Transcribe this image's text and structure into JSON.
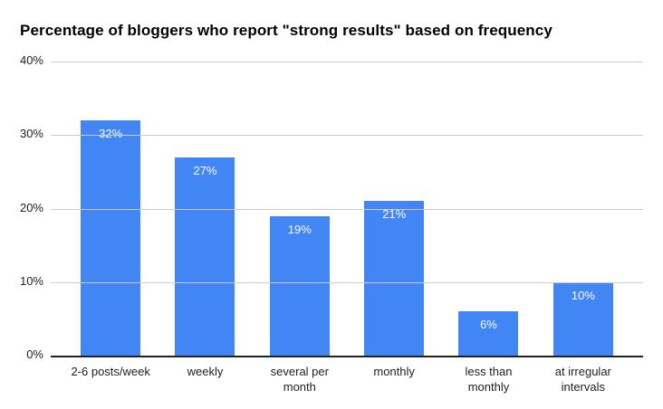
{
  "title": "Percentage of bloggers who report \"strong results\" based on frequency",
  "chart_data": {
    "type": "bar",
    "title": "Percentage of bloggers who report \"strong results\" based on frequency",
    "categories": [
      "2-6 posts/week",
      "weekly",
      "several per month",
      "monthly",
      "less than monthly",
      "at irregular intervals"
    ],
    "values": [
      32,
      27,
      19,
      21,
      6,
      10
    ],
    "bar_labels": [
      "32%",
      "27%",
      "19%",
      "21%",
      "6%",
      "10%"
    ],
    "y_ticks": [
      "0%",
      "10%",
      "20%",
      "30%",
      "40%"
    ],
    "ylim": [
      0,
      40
    ],
    "xlabel": "",
    "ylabel": "",
    "grid": true,
    "legend": "none",
    "colors": {
      "bar": "#4285f4",
      "bar_label_text": "#ffffff",
      "gridline": "#cccccc",
      "axis_line": "#212121",
      "axis_text": "#212121",
      "title_text": "#000000",
      "background": "#ffffff"
    }
  }
}
